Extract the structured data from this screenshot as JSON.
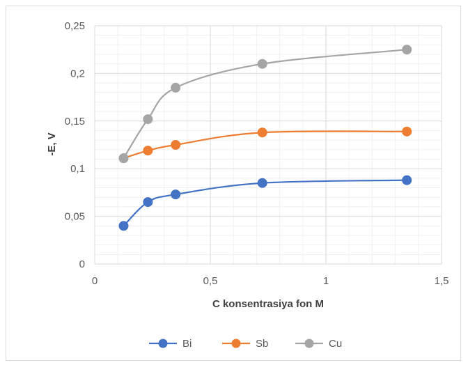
{
  "chart_data": {
    "type": "line",
    "xlabel": "C konsentrasiya fon M",
    "ylabel": "-E, V",
    "xlim": [
      0,
      1.5
    ],
    "ylim": [
      0,
      0.25
    ],
    "x_ticks": [
      "0",
      "0,5",
      "1",
      "1,5"
    ],
    "y_ticks": [
      "0",
      "0,05",
      "0,1",
      "0,15",
      "0,2",
      "0,25"
    ],
    "grid": true,
    "smooth": true,
    "legend_position": "bottom",
    "series": [
      {
        "name": "Bi",
        "color": "#4472c4",
        "x": [
          0.125,
          0.23,
          0.35,
          0.725,
          1.35
        ],
        "y": [
          0.04,
          0.065,
          0.073,
          0.085,
          0.088
        ]
      },
      {
        "name": "Sb",
        "color": "#ed7d31",
        "x": [
          0.125,
          0.23,
          0.35,
          0.725,
          1.35
        ],
        "y": [
          0.111,
          0.119,
          0.125,
          0.138,
          0.139
        ]
      },
      {
        "name": "Cu",
        "color": "#a5a5a5",
        "x": [
          0.125,
          0.23,
          0.35,
          0.725,
          1.35
        ],
        "y": [
          0.111,
          0.152,
          0.185,
          0.21,
          0.225
        ]
      }
    ]
  }
}
